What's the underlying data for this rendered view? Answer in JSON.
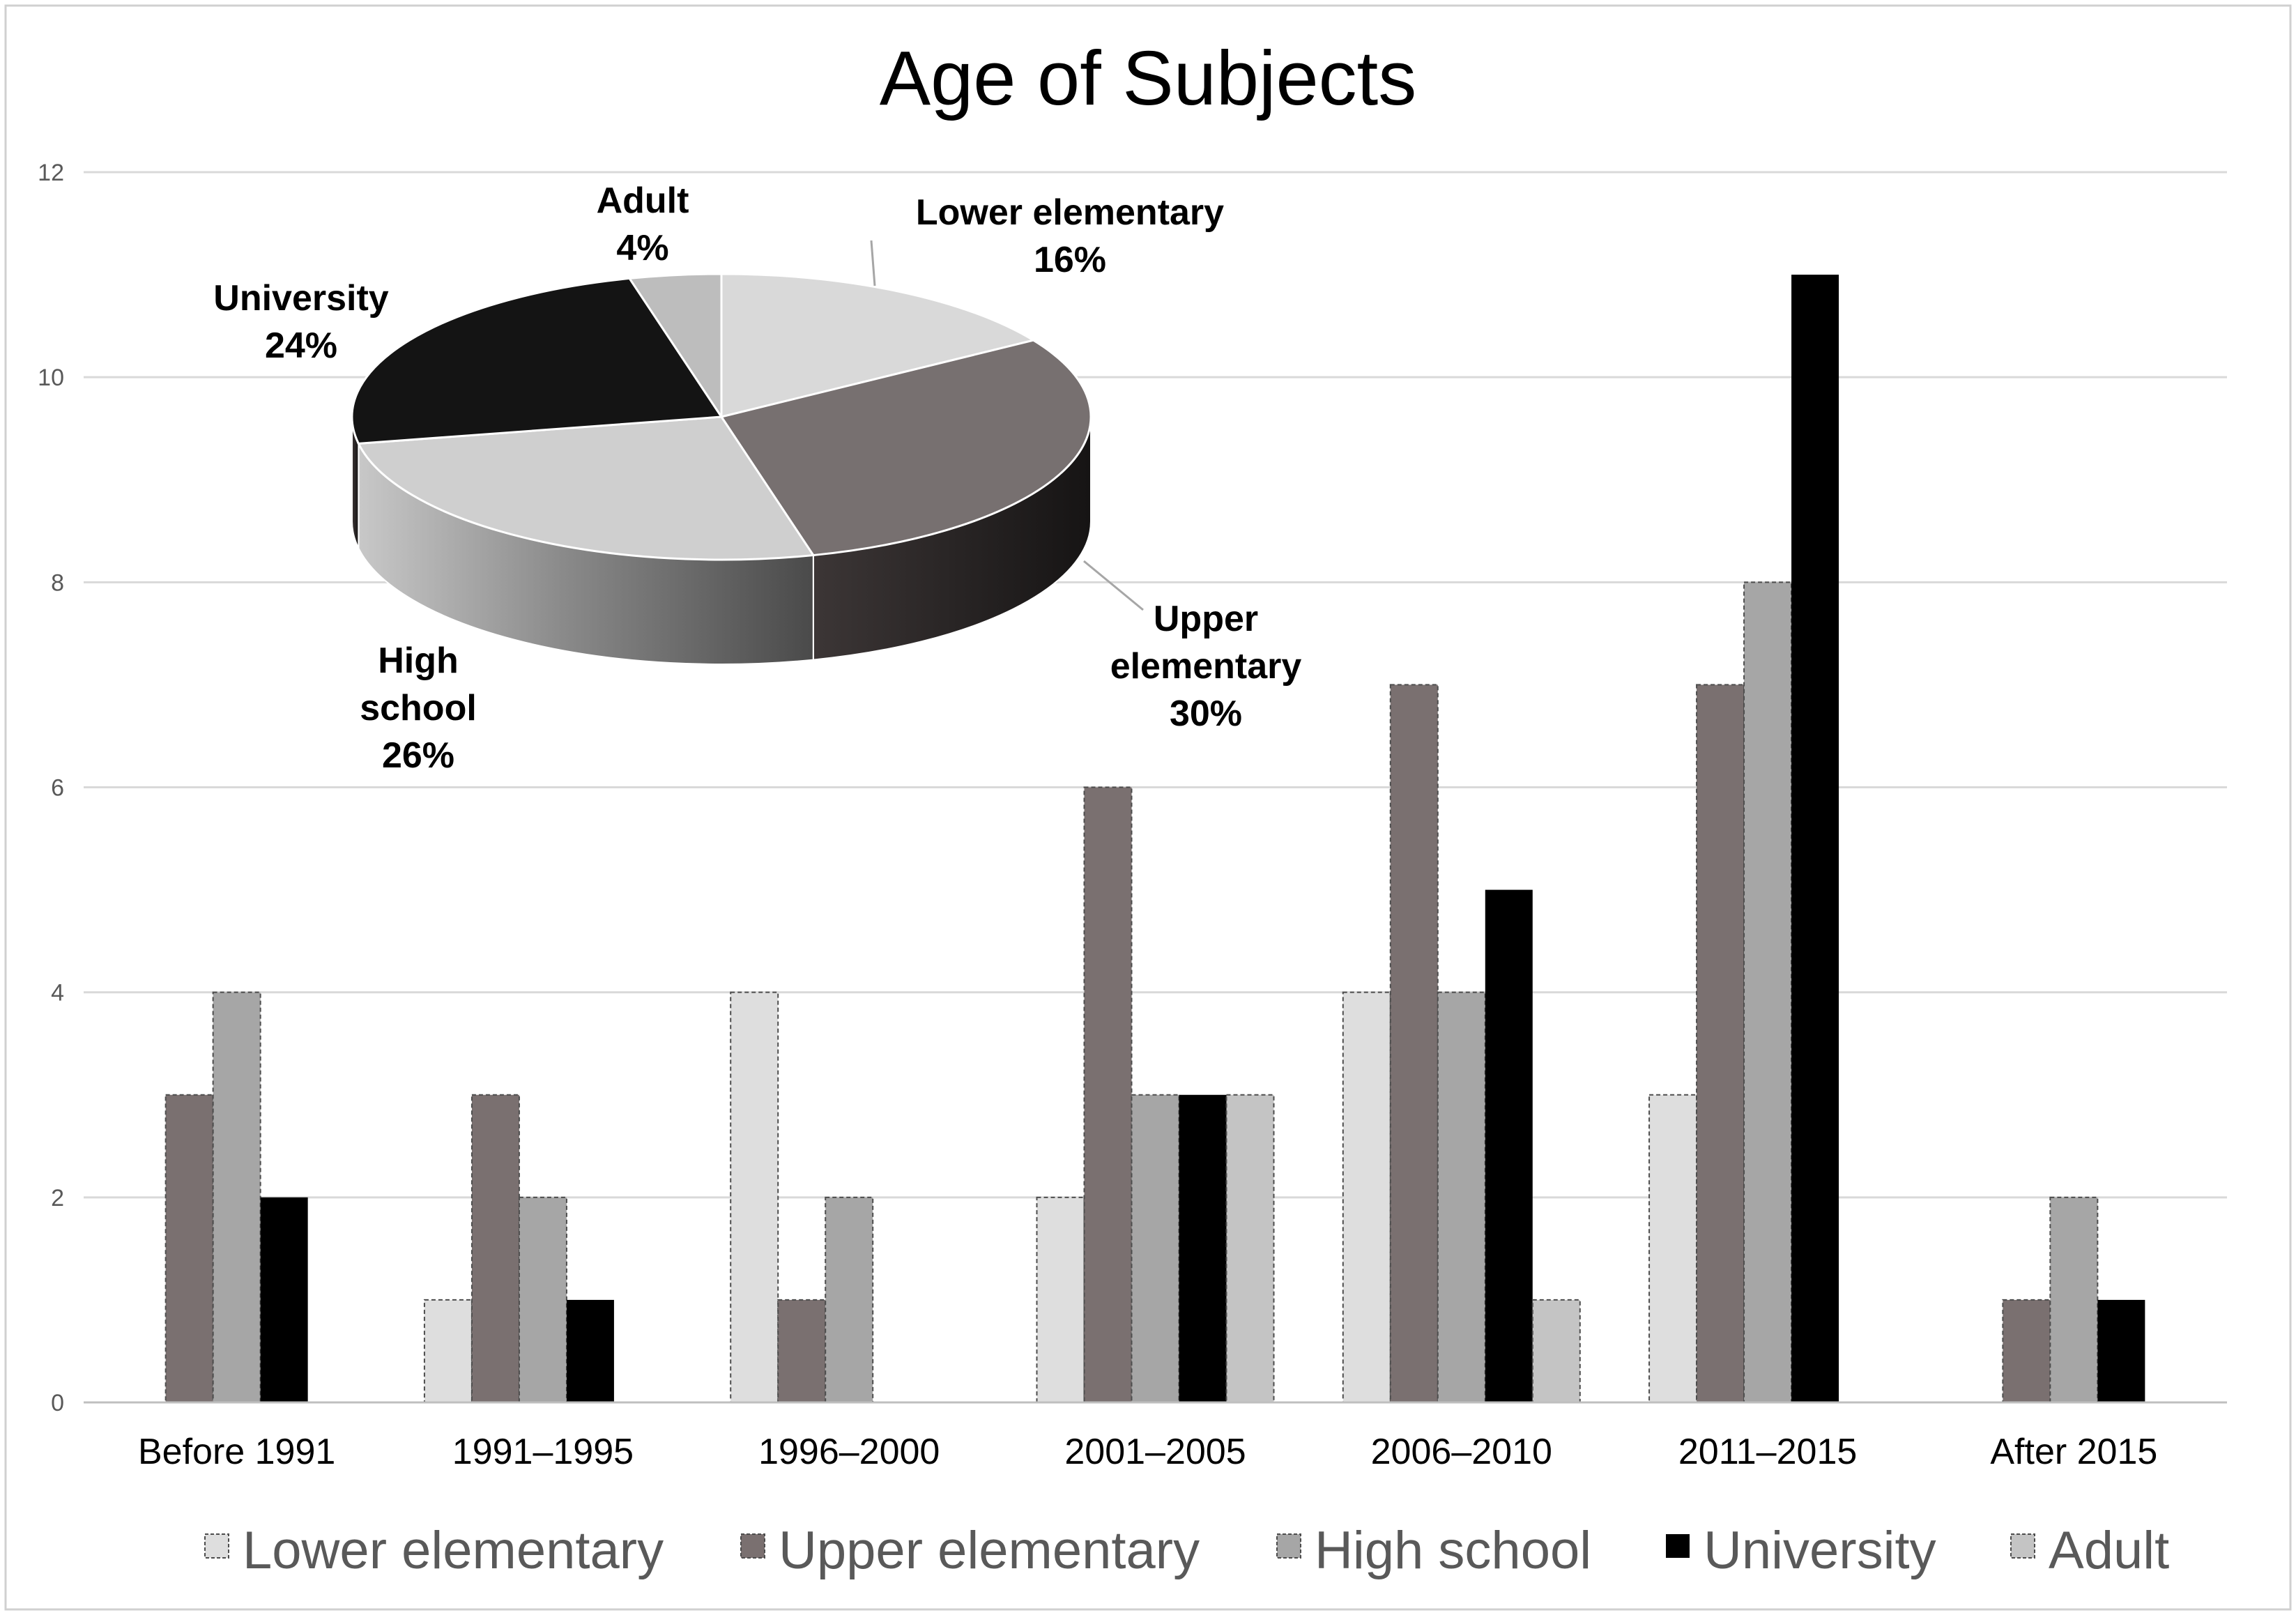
{
  "chart_data": [
    {
      "type": "bar",
      "title": "Age of Subjects",
      "categories": [
        "Before 1991",
        "1991–1995",
        "1996–2000",
        "2001–2005",
        "2006–2010",
        "2011–2015",
        "After 2015"
      ],
      "ylim": [
        0,
        12
      ],
      "yticks": [
        0,
        2,
        4,
        6,
        8,
        10,
        12
      ],
      "grid": true,
      "legend": "bottom",
      "series": [
        {
          "name": "Lower elementary",
          "values": [
            0,
            1,
            4,
            2,
            4,
            3,
            0
          ],
          "color": "#dedede"
        },
        {
          "name": "Upper elementary",
          "values": [
            3,
            3,
            1,
            6,
            7,
            7,
            1
          ],
          "color": "#7a7070"
        },
        {
          "name": "High school",
          "values": [
            4,
            2,
            2,
            3,
            4,
            8,
            2
          ],
          "color": "#a6a6a6"
        },
        {
          "name": "University",
          "values": [
            2,
            1,
            0,
            3,
            5,
            11,
            1
          ],
          "color": "#000000"
        },
        {
          "name": "Adult",
          "values": [
            0,
            0,
            0,
            3,
            1,
            0,
            0
          ],
          "color": "#c4c4c4"
        }
      ]
    },
    {
      "type": "pie",
      "slices": [
        {
          "name": "Lower elementary",
          "value": 16,
          "label": "16%",
          "color": "#d9d9d9"
        },
        {
          "name": "Upper elementary",
          "value": 30,
          "label": "30%",
          "color": "#777070"
        },
        {
          "name": "High school",
          "value": 26,
          "label": "26%",
          "color": "#cfcfcf"
        },
        {
          "name": "University",
          "value": 24,
          "label": "24%",
          "color": "#141414"
        },
        {
          "name": "Adult",
          "value": 4,
          "label": "4%",
          "color": "#bdbdbd"
        }
      ]
    }
  ]
}
